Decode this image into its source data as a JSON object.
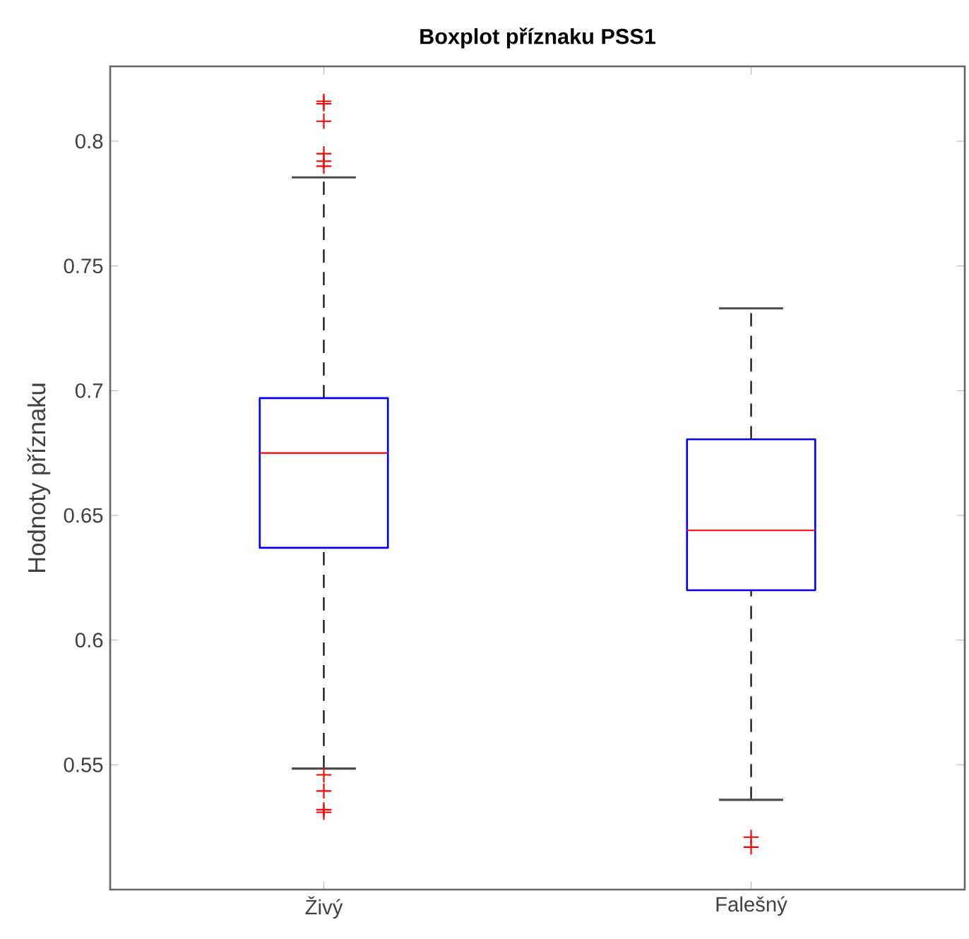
{
  "chart_data": {
    "type": "box",
    "title": "Boxplot příznaku PSS1",
    "ylabel": "Hodnoty příznaku",
    "categories": [
      "Živý",
      "Falešný"
    ],
    "boxes": [
      {
        "low": 0.5485,
        "q1": 0.637,
        "median": 0.675,
        "q3": 0.697,
        "high": 0.7855,
        "outliers": [
          0.816,
          0.815,
          0.808,
          0.795,
          0.792,
          0.79,
          0.546,
          0.5395,
          0.532,
          0.531
        ]
      },
      {
        "low": 0.536,
        "q1": 0.62,
        "median": 0.644,
        "q3": 0.6805,
        "high": 0.733,
        "outliers": [
          0.521,
          0.517
        ]
      }
    ],
    "ylim": [
      0.5,
      0.83
    ],
    "yticks": [
      0.55,
      0.6,
      0.65,
      0.7,
      0.75,
      0.8
    ],
    "marker": "cross"
  }
}
